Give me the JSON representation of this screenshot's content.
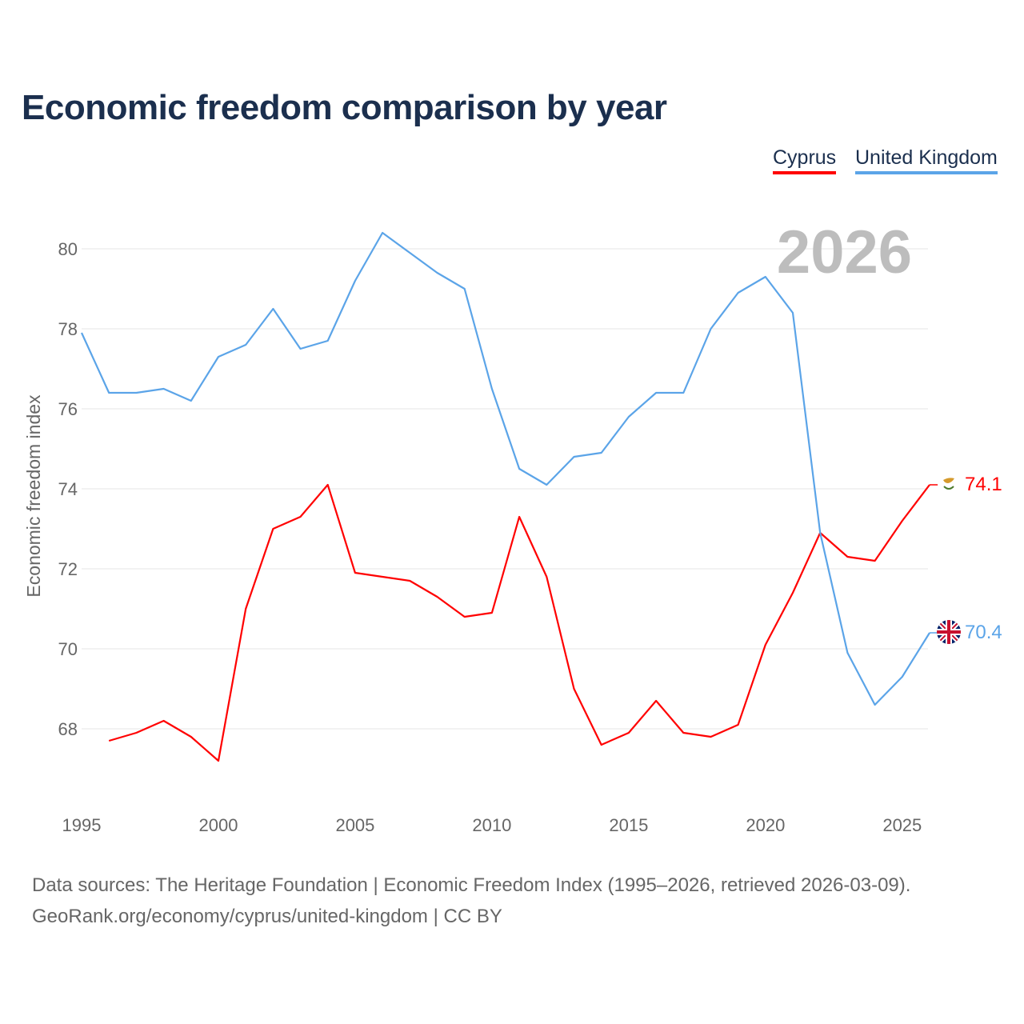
{
  "chart_data": {
    "type": "line",
    "title": "Economic freedom comparison by year",
    "xlabel": "",
    "ylabel": "Economic freedom index",
    "xlim": [
      1995,
      2026
    ],
    "ylim": [
      66.2,
      80.8
    ],
    "x_ticks": [
      1995,
      2000,
      2005,
      2010,
      2015,
      2020,
      2025
    ],
    "y_ticks": [
      68,
      70,
      72,
      74,
      76,
      78,
      80
    ],
    "grid": true,
    "legend_position": "top-right",
    "year_label": "2026",
    "series": [
      {
        "name": "Cyprus",
        "color": "#ff0000",
        "end_label": "74.1",
        "x": [
          1996,
          1997,
          1998,
          1999,
          2000,
          2001,
          2002,
          2003,
          2004,
          2005,
          2006,
          2007,
          2008,
          2009,
          2010,
          2011,
          2012,
          2013,
          2014,
          2015,
          2016,
          2017,
          2018,
          2019,
          2020,
          2021,
          2022,
          2023,
          2024,
          2025,
          2026
        ],
        "values": [
          67.7,
          67.9,
          68.2,
          67.8,
          67.2,
          71.0,
          73.0,
          73.3,
          74.1,
          71.9,
          71.8,
          71.7,
          71.3,
          70.8,
          70.9,
          73.3,
          71.8,
          69.0,
          67.6,
          67.9,
          68.7,
          67.9,
          67.8,
          68.1,
          70.1,
          71.4,
          72.9,
          72.3,
          72.2,
          73.2,
          74.1
        ]
      },
      {
        "name": "United Kingdom",
        "color": "#5ba4e8",
        "end_label": "70.4",
        "x": [
          1995,
          1996,
          1997,
          1998,
          1999,
          2000,
          2001,
          2002,
          2003,
          2004,
          2005,
          2006,
          2007,
          2008,
          2009,
          2010,
          2011,
          2012,
          2013,
          2014,
          2015,
          2016,
          2017,
          2018,
          2019,
          2020,
          2021,
          2022,
          2023,
          2024,
          2025,
          2026
        ],
        "values": [
          77.9,
          76.4,
          76.4,
          76.5,
          76.2,
          77.3,
          77.6,
          78.5,
          77.5,
          77.7,
          79.2,
          80.4,
          79.9,
          79.4,
          79.0,
          76.5,
          74.5,
          74.1,
          74.8,
          74.9,
          75.8,
          76.4,
          76.4,
          78.0,
          78.9,
          79.3,
          78.4,
          72.9,
          69.9,
          68.6,
          69.3,
          70.4
        ]
      }
    ]
  },
  "source": {
    "line1": "Data sources: The Heritage Foundation | Economic Freedom Index (1995–2026, retrieved 2026-03-09).",
    "line2": "GeoRank.org/economy/cyprus/united-kingdom | CC BY"
  }
}
